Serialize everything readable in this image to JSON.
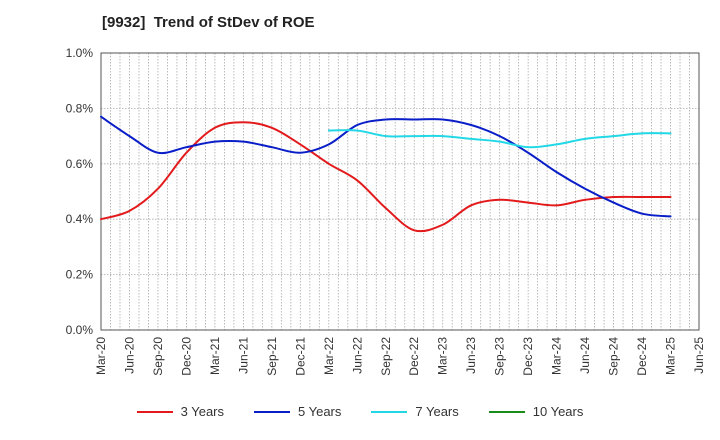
{
  "chart_data": {
    "type": "line",
    "title": "[9932]  Trend of StDev of ROE",
    "xlabel": "",
    "ylabel": "",
    "ylim": [
      0,
      1.0
    ],
    "y_ticks": [
      "0.0%",
      "0.2%",
      "0.4%",
      "0.6%",
      "0.8%",
      "1.0%"
    ],
    "x_tick_labels": [
      "Mar-20",
      "Jun-20",
      "Sep-20",
      "Dec-20",
      "Mar-21",
      "Jun-21",
      "Sep-21",
      "Dec-21",
      "Mar-22",
      "Jun-22",
      "Sep-22",
      "Dec-22",
      "Mar-23",
      "Jun-23",
      "Sep-23",
      "Dec-23",
      "Mar-24",
      "Jun-24",
      "Sep-24",
      "Dec-24",
      "Mar-25",
      "Jun-25"
    ],
    "grid": true,
    "legend_position": "bottom",
    "series": [
      {
        "name": "3 Years",
        "color": "#e31a1c",
        "values": [
          0.4,
          0.43,
          0.51,
          0.64,
          0.73,
          0.75,
          0.73,
          0.67,
          0.6,
          0.54,
          0.44,
          0.36,
          0.38,
          0.45,
          0.47,
          0.46,
          0.45,
          0.47,
          0.48,
          0.48,
          0.48,
          null
        ]
      },
      {
        "name": "5 Years",
        "color": "#0a1ec8",
        "values": [
          0.77,
          0.7,
          0.64,
          0.66,
          0.68,
          0.68,
          0.66,
          0.64,
          0.67,
          0.74,
          0.76,
          0.76,
          0.76,
          0.74,
          0.7,
          0.64,
          0.57,
          0.51,
          0.46,
          0.42,
          0.41,
          null
        ]
      },
      {
        "name": "7 Years",
        "color": "#22d8e6",
        "values": [
          null,
          null,
          null,
          null,
          null,
          null,
          null,
          null,
          0.72,
          0.72,
          0.7,
          0.7,
          0.7,
          0.69,
          0.68,
          0.66,
          0.67,
          0.69,
          0.7,
          0.71,
          0.71,
          null
        ]
      },
      {
        "name": "10 Years",
        "color": "#1a8c1a",
        "values": [
          null,
          null,
          null,
          null,
          null,
          null,
          null,
          null,
          null,
          null,
          null,
          null,
          null,
          null,
          null,
          null,
          null,
          null,
          null,
          null,
          null,
          null
        ]
      }
    ]
  }
}
